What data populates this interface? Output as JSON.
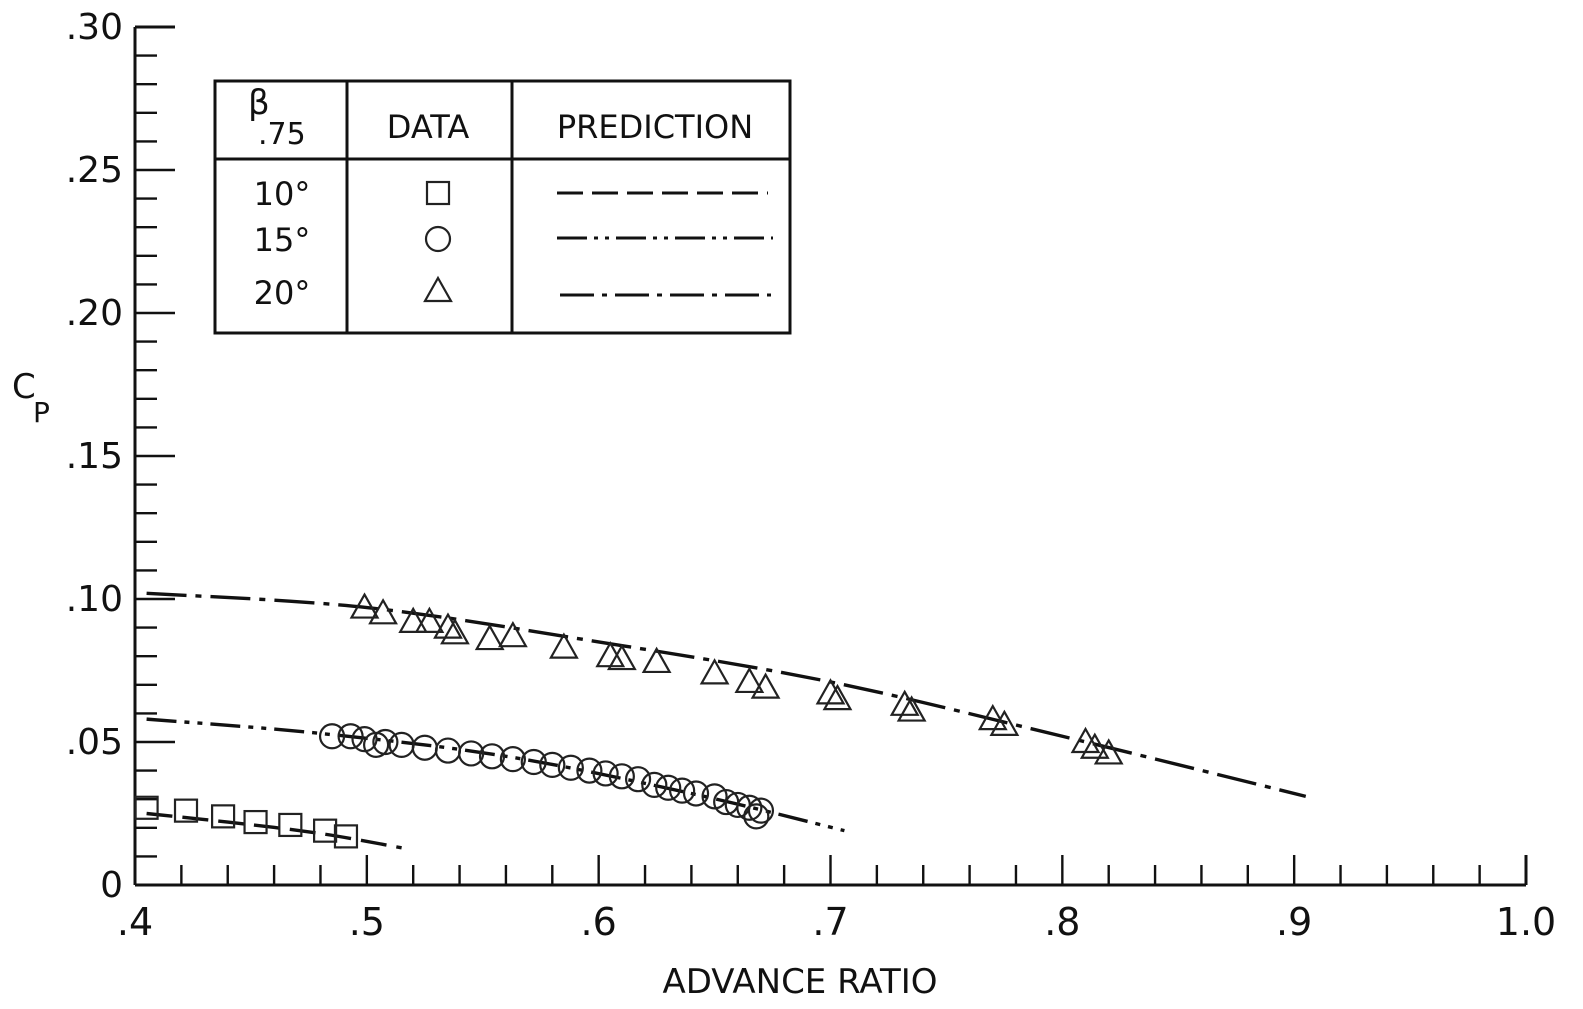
{
  "chart_data": {
    "type": "scatter",
    "xlabel": "ADVANCE RATIO",
    "ylabel": "C",
    "ylabel_sub": "P",
    "xlim": [
      0.4,
      1.0
    ],
    "ylim": [
      0,
      0.3
    ],
    "x_ticks": [
      {
        "value": 0.4,
        "label": ".4"
      },
      {
        "value": 0.5,
        "label": ".5"
      },
      {
        "value": 0.6,
        "label": ".6"
      },
      {
        "value": 0.7,
        "label": ".7"
      },
      {
        "value": 0.8,
        "label": ".8"
      },
      {
        "value": 0.9,
        "label": ".9"
      },
      {
        "value": 1.0,
        "label": "1.0"
      }
    ],
    "y_ticks": [
      {
        "value": 0,
        "label": "0"
      },
      {
        "value": 0.05,
        "label": ".05"
      },
      {
        "value": 0.1,
        "label": ".10"
      },
      {
        "value": 0.15,
        "label": ".15"
      },
      {
        "value": 0.2,
        "label": ".20"
      },
      {
        "value": 0.25,
        "label": ".25"
      },
      {
        "value": 0.3,
        "label": ".30"
      }
    ],
    "legend": {
      "placement": "top-left",
      "headers": {
        "beta": "β",
        "beta_sub": ".75",
        "data": "DATA",
        "prediction": "PREDICTION"
      },
      "rows": [
        {
          "angle": "10°",
          "marker": "square",
          "dash": "long-dash"
        },
        {
          "angle": "15°",
          "marker": "circle",
          "dash": "dash-dot-dot"
        },
        {
          "angle": "20°",
          "marker": "triangle",
          "dash": "dash-dot"
        }
      ]
    },
    "series": [
      {
        "angle": "10°",
        "marker": "square",
        "data": [
          [
            0.405,
            0.027
          ],
          [
            0.422,
            0.026
          ],
          [
            0.438,
            0.024
          ],
          [
            0.452,
            0.022
          ],
          [
            0.467,
            0.021
          ],
          [
            0.482,
            0.019
          ],
          [
            0.491,
            0.017
          ]
        ],
        "prediction": {
          "dash": "long-dash",
          "points": [
            [
              0.405,
              0.025
            ],
            [
              0.44,
              0.022
            ],
            [
              0.48,
              0.018
            ],
            [
              0.515,
              0.013
            ]
          ]
        }
      },
      {
        "angle": "15°",
        "marker": "circle",
        "data": [
          [
            0.485,
            0.052
          ],
          [
            0.493,
            0.052
          ],
          [
            0.499,
            0.051
          ],
          [
            0.504,
            0.049
          ],
          [
            0.508,
            0.05
          ],
          [
            0.515,
            0.049
          ],
          [
            0.525,
            0.048
          ],
          [
            0.535,
            0.047
          ],
          [
            0.545,
            0.046
          ],
          [
            0.554,
            0.045
          ],
          [
            0.563,
            0.044
          ],
          [
            0.572,
            0.043
          ],
          [
            0.58,
            0.042
          ],
          [
            0.588,
            0.041
          ],
          [
            0.596,
            0.04
          ],
          [
            0.603,
            0.039
          ],
          [
            0.61,
            0.038
          ],
          [
            0.617,
            0.037
          ],
          [
            0.624,
            0.035
          ],
          [
            0.63,
            0.034
          ],
          [
            0.636,
            0.033
          ],
          [
            0.642,
            0.032
          ],
          [
            0.65,
            0.031
          ],
          [
            0.655,
            0.029
          ],
          [
            0.66,
            0.028
          ],
          [
            0.665,
            0.027
          ],
          [
            0.67,
            0.026
          ],
          [
            0.668,
            0.024
          ]
        ],
        "prediction": {
          "dash": "dash-dot-dot",
          "points": [
            [
              0.405,
              0.058
            ],
            [
              0.48,
              0.053
            ],
            [
              0.56,
              0.045
            ],
            [
              0.64,
              0.032
            ],
            [
              0.706,
              0.019
            ]
          ]
        }
      },
      {
        "angle": "20°",
        "marker": "triangle",
        "data": [
          [
            0.499,
            0.097
          ],
          [
            0.507,
            0.095
          ],
          [
            0.52,
            0.092
          ],
          [
            0.527,
            0.092
          ],
          [
            0.535,
            0.09
          ],
          [
            0.538,
            0.088
          ],
          [
            0.553,
            0.086
          ],
          [
            0.563,
            0.087
          ],
          [
            0.585,
            0.083
          ],
          [
            0.605,
            0.08
          ],
          [
            0.61,
            0.079
          ],
          [
            0.625,
            0.078
          ],
          [
            0.65,
            0.074
          ],
          [
            0.665,
            0.071
          ],
          [
            0.672,
            0.069
          ],
          [
            0.7,
            0.067
          ],
          [
            0.703,
            0.065
          ],
          [
            0.732,
            0.063
          ],
          [
            0.735,
            0.061
          ],
          [
            0.77,
            0.058
          ],
          [
            0.775,
            0.056
          ],
          [
            0.81,
            0.05
          ],
          [
            0.814,
            0.048
          ],
          [
            0.82,
            0.046
          ]
        ],
        "prediction": {
          "dash": "dash-dot",
          "points": [
            [
              0.405,
              0.102
            ],
            [
              0.5,
              0.097
            ],
            [
              0.6,
              0.085
            ],
            [
              0.7,
              0.071
            ],
            [
              0.8,
              0.052
            ],
            [
              0.905,
              0.031
            ]
          ]
        }
      }
    ]
  }
}
